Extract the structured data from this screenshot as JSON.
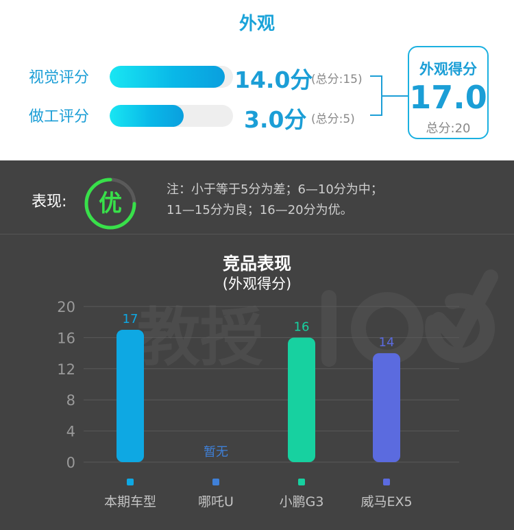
{
  "appearance": {
    "title": "外观",
    "rows": [
      {
        "label": "视觉评分",
        "score": "14.0分",
        "value": 14.0,
        "max": 15,
        "total": "(总分:15)"
      },
      {
        "label": "做工评分",
        "score": "3.0分",
        "value": 3.0,
        "max": 5,
        "total": "(总分:5)"
      }
    ],
    "summary": {
      "title": "外观得分",
      "value": "17.0",
      "total": "总分:20"
    }
  },
  "rating": {
    "label": "表现:",
    "grade": "优",
    "note_line1": "注：小于等于5分为差；6—10分为中；",
    "note_line2": "11—15分为良；16—20分为优。"
  },
  "colors": {
    "accent": "#1b9ed6",
    "dark_bg": "#424242",
    "grade_green": "#38e04a"
  },
  "chart_data": {
    "type": "bar",
    "title": "竞品表现",
    "subtitle": "(外观得分)",
    "categories": [
      "本期车型",
      "哪吒U",
      "小鹏G3",
      "威马EX5"
    ],
    "values": [
      17,
      null,
      16,
      14
    ],
    "value_labels": [
      "17",
      "暂无",
      "16",
      "14"
    ],
    "colors": [
      "#0ea8e3",
      "#3f80d8",
      "#17d1a0",
      "#5b6bdf"
    ],
    "ylim": [
      0,
      20
    ],
    "yticks": [
      "0",
      "4",
      "8",
      "12",
      "16",
      "20"
    ],
    "grid": true
  },
  "watermark": "教授100"
}
